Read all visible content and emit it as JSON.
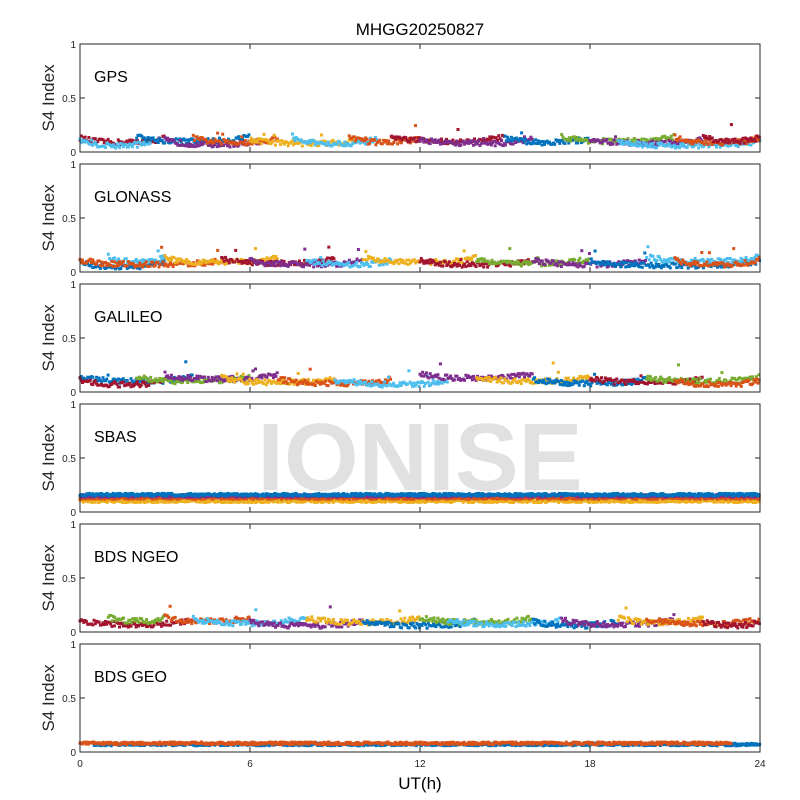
{
  "chart_data": {
    "type": "scatter",
    "title": "MHGG20250827",
    "xlabel": "UT(h)",
    "ylabel": "S4 Index",
    "xlim": [
      0,
      24
    ],
    "ylim": [
      0,
      1
    ],
    "xticks": [
      "0",
      "6",
      "12",
      "18",
      "24"
    ],
    "yticks": [
      "0",
      "0.5",
      "1"
    ],
    "grid": false,
    "watermark": "IONISE",
    "colors": [
      "#0072BD",
      "#D95319",
      "#EDB120",
      "#7E2F8E",
      "#77AC30",
      "#4DBEEE",
      "#A2142F"
    ],
    "pass_format": [
      "color_index",
      "start_UT_h",
      "end_UT_h",
      "typical_S4"
    ],
    "panels": [
      {
        "label": "GPS",
        "passes": [
          [
            6,
            0,
            3,
            0.09
          ],
          [
            5,
            0,
            2.5,
            0.06
          ],
          [
            0,
            2,
            6,
            0.1
          ],
          [
            3,
            3,
            6.5,
            0.07
          ],
          [
            1,
            4,
            7,
            0.09
          ],
          [
            2,
            6,
            10,
            0.08
          ],
          [
            5,
            7.5,
            10.5,
            0.08
          ],
          [
            1,
            9.5,
            12,
            0.09
          ],
          [
            6,
            11,
            15,
            0.1
          ],
          [
            3,
            12,
            16,
            0.08
          ],
          [
            0,
            15,
            18,
            0.09
          ],
          [
            4,
            17,
            21,
            0.1
          ],
          [
            3,
            18,
            22,
            0.08
          ],
          [
            5,
            19,
            24,
            0.06
          ],
          [
            1,
            21,
            24,
            0.09
          ],
          [
            6,
            22,
            24,
            0.1
          ]
        ]
      },
      {
        "label": "GLONASS",
        "passes": [
          [
            0,
            0,
            3,
            0.05
          ],
          [
            5,
            1,
            3,
            0.1
          ],
          [
            1,
            0,
            5,
            0.07
          ],
          [
            2,
            3,
            7,
            0.09
          ],
          [
            6,
            5,
            9,
            0.08
          ],
          [
            3,
            6,
            10,
            0.07
          ],
          [
            5,
            8,
            11,
            0.07
          ],
          [
            2,
            10,
            14,
            0.09
          ],
          [
            6,
            12,
            16,
            0.07
          ],
          [
            4,
            14,
            18,
            0.08
          ],
          [
            3,
            16,
            20,
            0.07
          ],
          [
            0,
            18,
            24,
            0.06
          ],
          [
            5,
            20,
            24,
            0.1
          ],
          [
            1,
            21,
            24,
            0.07
          ]
        ]
      },
      {
        "label": "GALILEO",
        "passes": [
          [
            0,
            0,
            4,
            0.1
          ],
          [
            6,
            0,
            3,
            0.07
          ],
          [
            4,
            2,
            6,
            0.1
          ],
          [
            3,
            3,
            7,
            0.12
          ],
          [
            2,
            5,
            9,
            0.09
          ],
          [
            1,
            7,
            11,
            0.08
          ],
          [
            5,
            9,
            13,
            0.07
          ],
          [
            3,
            12,
            16,
            0.13
          ],
          [
            2,
            14,
            18,
            0.1
          ],
          [
            0,
            16,
            20,
            0.08
          ],
          [
            6,
            18,
            22,
            0.09
          ],
          [
            4,
            20,
            24,
            0.1
          ],
          [
            1,
            21,
            24,
            0.07
          ]
        ]
      },
      {
        "label": "SBAS",
        "passes": [
          [
            2,
            0,
            24,
            0.1
          ],
          [
            1,
            0,
            24,
            0.13
          ],
          [
            3,
            0,
            24,
            0.15
          ],
          [
            0,
            0,
            24,
            0.16
          ]
        ]
      },
      {
        "label": "BDS NGEO",
        "passes": [
          [
            6,
            0,
            4,
            0.07
          ],
          [
            4,
            1,
            3,
            0.1
          ],
          [
            1,
            3,
            6,
            0.1
          ],
          [
            5,
            4,
            8,
            0.08
          ],
          [
            3,
            6,
            10,
            0.06
          ],
          [
            2,
            8,
            12,
            0.09
          ],
          [
            0,
            10,
            14,
            0.06
          ],
          [
            4,
            12,
            16,
            0.09
          ],
          [
            5,
            13,
            17,
            0.07
          ],
          [
            0,
            16,
            19,
            0.06
          ],
          [
            3,
            17,
            21,
            0.07
          ],
          [
            2,
            19,
            22,
            0.09
          ],
          [
            1,
            20,
            24,
            0.08
          ],
          [
            6,
            22,
            24,
            0.06
          ]
        ]
      },
      {
        "label": "BDS GEO",
        "passes": [
          [
            0,
            0.5,
            24,
            0.07
          ],
          [
            1,
            0,
            23,
            0.08
          ]
        ]
      }
    ]
  }
}
